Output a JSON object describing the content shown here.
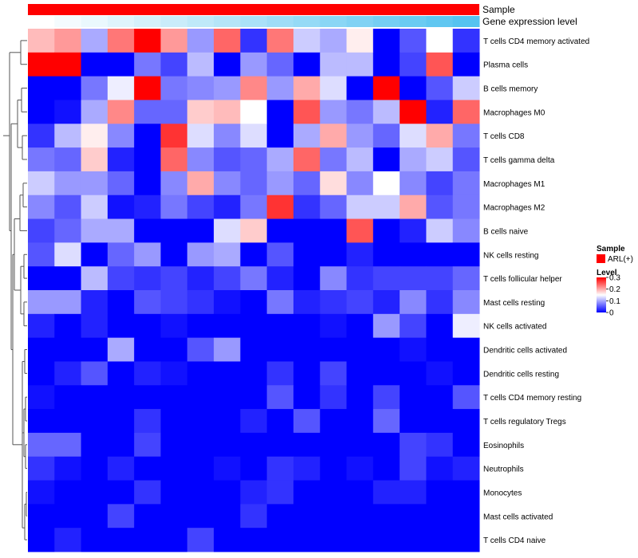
{
  "chart_data": {
    "type": "heatmap",
    "annotation_tracks": [
      {
        "label": "Sample"
      },
      {
        "label": "Gene expression level"
      }
    ],
    "columns": 17,
    "rows": [
      "T cells CD4 memory activated",
      "Plasma cells",
      "B cells memory",
      "Macrophages M0",
      "T cells CD8",
      "T cells gamma delta",
      "Macrophages M1",
      "Macrophages M2",
      "B cells naive",
      "NK cells resting",
      "T cells follicular helper",
      "Mast cells resting",
      "NK cells activated",
      "Dendritic cells activated",
      "Dendritic cells resting",
      "T cells CD4 memory resting",
      "T cells regulatory  Tregs",
      "Eosinophils",
      "Neutrophils",
      "Monocytes",
      "Mast cells activated",
      "T cells CD4 naive"
    ],
    "values": [
      [
        0.19,
        0.21,
        0.1,
        0.23,
        0.3,
        0.21,
        0.09,
        0.24,
        0.03,
        0.23,
        0.12,
        0.1,
        0.16,
        0.0,
        0.05,
        0.15,
        0.03
      ],
      [
        0.3,
        0.3,
        0.0,
        0.0,
        0.07,
        0.04,
        0.11,
        0.0,
        0.09,
        0.06,
        0.0,
        0.11,
        0.11,
        0.0,
        0.04,
        0.25,
        0.0
      ],
      [
        0.0,
        0.0,
        0.07,
        0.14,
        0.3,
        0.07,
        0.08,
        0.09,
        0.22,
        0.09,
        0.2,
        0.13,
        0.0,
        0.3,
        0.0,
        0.05,
        0.12
      ],
      [
        0.0,
        0.01,
        0.1,
        0.22,
        0.06,
        0.06,
        0.18,
        0.19,
        0.15,
        0.0,
        0.25,
        0.09,
        0.07,
        0.11,
        0.3,
        0.02,
        0.24
      ],
      [
        0.03,
        0.11,
        0.16,
        0.08,
        0.0,
        0.27,
        0.13,
        0.08,
        0.13,
        0.0,
        0.1,
        0.2,
        0.09,
        0.06,
        0.13,
        0.2,
        0.07
      ],
      [
        0.07,
        0.06,
        0.18,
        0.02,
        0.0,
        0.24,
        0.08,
        0.05,
        0.06,
        0.1,
        0.24,
        0.07,
        0.11,
        0.0,
        0.1,
        0.12,
        0.05
      ],
      [
        0.12,
        0.09,
        0.09,
        0.06,
        0.0,
        0.08,
        0.2,
        0.08,
        0.06,
        0.09,
        0.06,
        0.17,
        0.08,
        0.15,
        0.08,
        0.04,
        0.07
      ],
      [
        0.08,
        0.05,
        0.12,
        0.01,
        0.02,
        0.07,
        0.04,
        0.02,
        0.07,
        0.27,
        0.03,
        0.06,
        0.12,
        0.12,
        0.2,
        0.05,
        0.07
      ],
      [
        0.04,
        0.06,
        0.1,
        0.1,
        0.0,
        0.0,
        0.0,
        0.13,
        0.18,
        0.0,
        0.0,
        0.0,
        0.25,
        0.0,
        0.02,
        0.12,
        0.08
      ],
      [
        0.05,
        0.13,
        0.0,
        0.06,
        0.09,
        0.0,
        0.09,
        0.1,
        0.0,
        0.05,
        0.0,
        0.0,
        0.02,
        0.0,
        0.0,
        0.0,
        0.0
      ],
      [
        0.0,
        0.0,
        0.11,
        0.04,
        0.03,
        0.04,
        0.02,
        0.04,
        0.07,
        0.02,
        0.0,
        0.08,
        0.03,
        0.04,
        0.04,
        0.04,
        0.06
      ],
      [
        0.09,
        0.09,
        0.02,
        0.0,
        0.05,
        0.04,
        0.03,
        0.01,
        0.0,
        0.07,
        0.02,
        0.03,
        0.04,
        0.02,
        0.08,
        0.03,
        0.08
      ],
      [
        0.02,
        0.0,
        0.02,
        0.0,
        0.0,
        0.01,
        0.0,
        0.0,
        0.0,
        0.0,
        0.0,
        0.01,
        0.0,
        0.09,
        0.04,
        0.0,
        0.14
      ],
      [
        0.0,
        0.0,
        0.0,
        0.1,
        0.0,
        0.0,
        0.05,
        0.09,
        0.0,
        0.0,
        0.0,
        0.0,
        0.0,
        0.0,
        0.01,
        0.0,
        0.0
      ],
      [
        0.0,
        0.02,
        0.05,
        0.0,
        0.02,
        0.01,
        0.0,
        0.0,
        0.0,
        0.03,
        0.0,
        0.04,
        0.0,
        0.0,
        0.0,
        0.01,
        0.0
      ],
      [
        0.01,
        0.0,
        0.0,
        0.0,
        0.0,
        0.0,
        0.0,
        0.0,
        0.0,
        0.05,
        0.0,
        0.03,
        0.0,
        0.04,
        0.0,
        0.0,
        0.05
      ],
      [
        0.0,
        0.0,
        0.0,
        0.0,
        0.03,
        0.0,
        0.0,
        0.0,
        0.02,
        0.0,
        0.05,
        0.0,
        0.0,
        0.06,
        0.0,
        0.0,
        0.0
      ],
      [
        0.06,
        0.06,
        0.0,
        0.0,
        0.04,
        0.0,
        0.0,
        0.0,
        0.0,
        0.0,
        0.0,
        0.0,
        0.0,
        0.0,
        0.04,
        0.03,
        0.0
      ],
      [
        0.03,
        0.01,
        0.0,
        0.02,
        0.0,
        0.0,
        0.0,
        0.01,
        0.0,
        0.03,
        0.02,
        0.0,
        0.01,
        0.0,
        0.04,
        0.01,
        0.02
      ],
      [
        0.01,
        0.0,
        0.0,
        0.0,
        0.03,
        0.0,
        0.0,
        0.0,
        0.02,
        0.03,
        0.0,
        0.0,
        0.0,
        0.02,
        0.02,
        0.0,
        0.0
      ],
      [
        0.0,
        0.0,
        0.0,
        0.04,
        0.0,
        0.0,
        0.0,
        0.0,
        0.03,
        0.0,
        0.0,
        0.0,
        0.0,
        0.0,
        0.0,
        0.0,
        0.0
      ],
      [
        0.0,
        0.02,
        0.0,
        0.0,
        0.0,
        0.0,
        0.04,
        0.0,
        0.0,
        0.0,
        0.0,
        0.0,
        0.0,
        0.0,
        0.0,
        0.0,
        0.0
      ]
    ],
    "color_scale": {
      "min": 0,
      "max": 0.3,
      "colors": [
        "#0000ff",
        "#ffffff",
        "#ff0000"
      ]
    },
    "sample_track": {
      "color": "#ff0000",
      "value": "ARL(+)"
    },
    "gene_track": {
      "colors": [
        "#ffffff",
        "#55c3f0"
      ]
    },
    "legend": {
      "sample_title": "Sample",
      "sample_item": "ARL(+)",
      "level_title": "Level",
      "ticks": [
        {
          "value": 0.3,
          "label": "0.3"
        },
        {
          "value": 0.2,
          "label": "0.2"
        },
        {
          "value": 0.1,
          "label": "0.1"
        },
        {
          "value": 0.0,
          "label": "0"
        }
      ],
      "placement": "right"
    },
    "dendrogram": {
      "side": "left"
    }
  }
}
